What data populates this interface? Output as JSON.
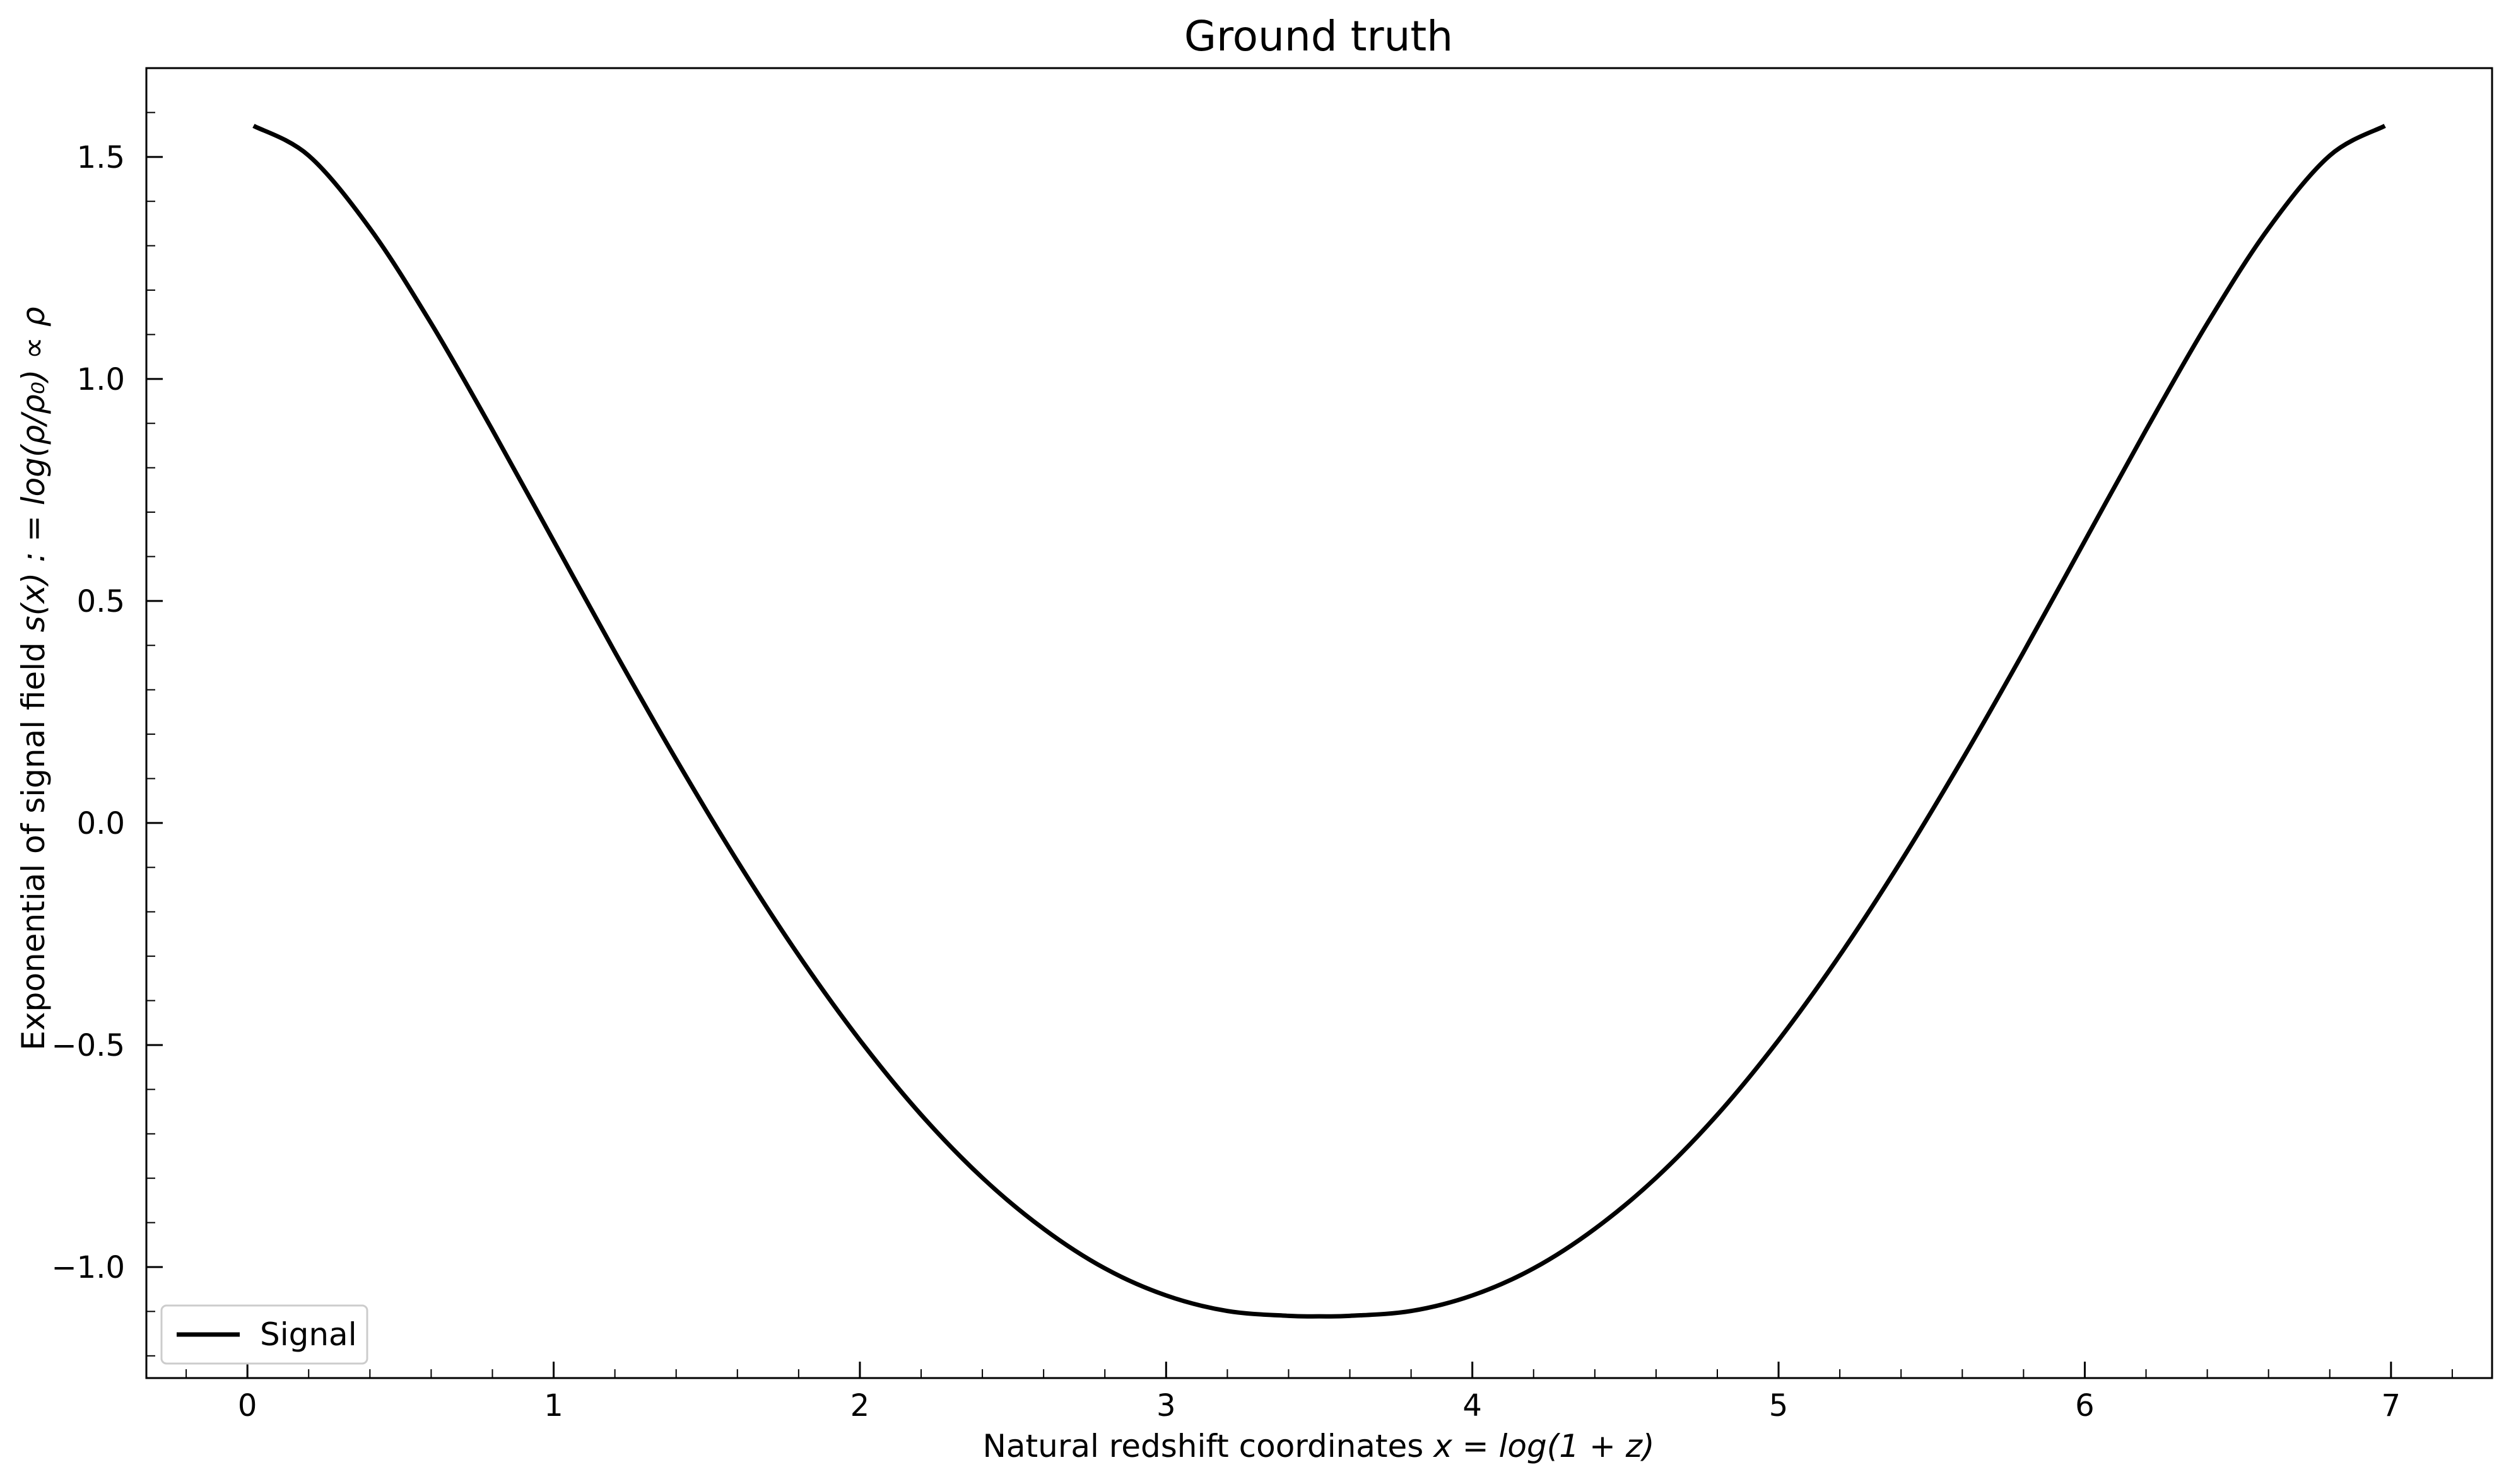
{
  "chart_data": {
    "type": "line",
    "title": "Ground truth",
    "xlabel": "Natural redshift coordinates",
    "xlabel_math": "x = log(1 + z)",
    "ylabel": "Exponential of signal field",
    "ylabel_math": "s(x) : = log(ρ/ρ₀) ∝ ρ",
    "xlim": [
      -0.33,
      7.33
    ],
    "ylim": [
      -1.25,
      1.7
    ],
    "xticks": [
      0,
      1,
      2,
      3,
      4,
      5,
      6,
      7
    ],
    "xtick_labels": [
      "0",
      "1",
      "2",
      "3",
      "4",
      "5",
      "6",
      "7"
    ],
    "yticks": [
      -1.0,
      -0.5,
      0.0,
      0.5,
      1.0,
      1.5
    ],
    "ytick_labels": [
      "−1.0",
      "−0.5",
      "0.0",
      "0.5",
      "1.0",
      "1.5"
    ],
    "grid": false,
    "legend_position": "bottom-left",
    "series": [
      {
        "name": "Signal",
        "color": "#000000",
        "x": [
          0.02,
          0.2,
          0.4,
          0.6,
          0.8,
          1.0,
          1.2,
          1.4,
          1.6,
          1.8,
          2.0,
          2.2,
          2.4,
          2.6,
          2.8,
          3.0,
          3.2,
          3.4,
          3.5,
          3.6,
          3.8,
          4.0,
          4.2,
          4.4,
          4.6,
          4.8,
          5.0,
          5.2,
          5.4,
          5.6,
          5.8,
          6.0,
          6.2,
          6.4,
          6.6,
          6.8,
          6.98
        ],
        "y": [
          1.57,
          1.503,
          1.339,
          1.125,
          0.885,
          0.635,
          0.385,
          0.143,
          -0.086,
          -0.298,
          -0.489,
          -0.657,
          -0.799,
          -0.914,
          -1.003,
          -1.064,
          -1.099,
          -1.11,
          -1.111,
          -1.11,
          -1.099,
          -1.064,
          -1.003,
          -0.914,
          -0.799,
          -0.657,
          -0.489,
          -0.298,
          -0.086,
          0.143,
          0.385,
          0.635,
          0.885,
          1.125,
          1.339,
          1.503,
          1.57
        ]
      }
    ]
  }
}
